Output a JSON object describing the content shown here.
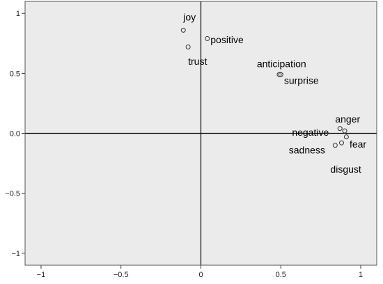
{
  "chart_data": {
    "type": "scatter",
    "title": "",
    "xlabel": "",
    "ylabel": "",
    "xlim": [
      -1.1,
      1.1
    ],
    "ylim": [
      -1.1,
      1.1
    ],
    "x_ticks": [
      -1,
      -0.5,
      0,
      0.5,
      1
    ],
    "y_ticks": [
      1,
      0.5,
      0.0,
      -0.5,
      -1
    ],
    "x_tick_labels": [
      "−1",
      "−0.5",
      "0",
      "0.5",
      "1"
    ],
    "y_tick_labels": [
      "1",
      "0.5",
      "0.0",
      "−0.5",
      "−1"
    ],
    "grid": false,
    "reference_lines": {
      "x": 0,
      "y": 0
    },
    "colors": {
      "plot_background": "#ebebeb",
      "marker_edge": "#333333",
      "axis_line": "#000000"
    },
    "points": [
      {
        "label": "joy",
        "x": -0.11,
        "y": 0.86,
        "label_dx": 0.0,
        "label_dy": 0.11
      },
      {
        "label": "positive",
        "x": 0.04,
        "y": 0.79,
        "label_dx": 0.02,
        "label_dy": -0.01
      },
      {
        "label": "trust",
        "x": -0.08,
        "y": 0.72,
        "label_dx": 0.0,
        "label_dy": -0.12
      },
      {
        "label": "anticipation",
        "x": 0.49,
        "y": 0.49,
        "label_dx": -0.14,
        "label_dy": 0.09
      },
      {
        "label": "surprise",
        "x": 0.5,
        "y": 0.49,
        "label_dx": 0.02,
        "label_dy": -0.05
      },
      {
        "label": "anger",
        "x": 0.87,
        "y": 0.04,
        "label_dx": -0.03,
        "label_dy": 0.08
      },
      {
        "label": "negative",
        "x": 0.9,
        "y": 0.02,
        "label_dx": -0.33,
        "label_dy": -0.01
      },
      {
        "label": "fear",
        "x": 0.91,
        "y": -0.03,
        "label_dx": 0.02,
        "label_dy": -0.06
      },
      {
        "label": "sadness",
        "x": 0.84,
        "y": -0.1,
        "label_dx": -0.29,
        "label_dy": -0.04
      },
      {
        "label": "disgust",
        "x": 0.88,
        "y": -0.08,
        "label_dx": -0.07,
        "label_dy": -0.22
      }
    ]
  }
}
